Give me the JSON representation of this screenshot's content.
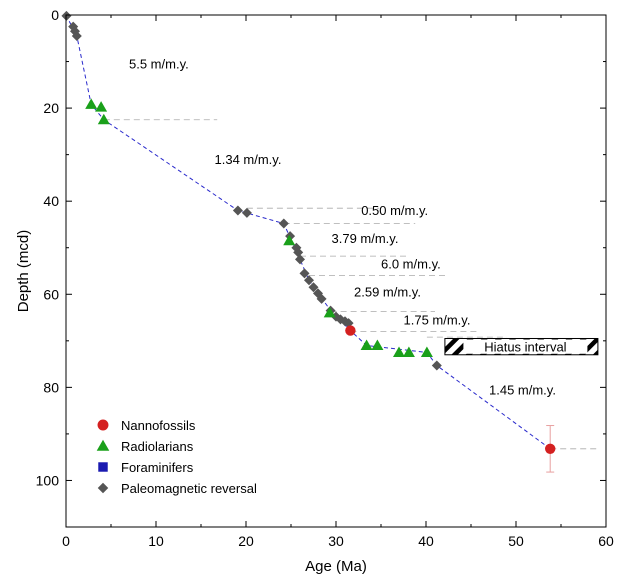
{
  "chart_data": {
    "type": "scatter",
    "xlabel": "Age (Ma)",
    "ylabel": "Depth (mcd)",
    "xlim": [
      0,
      60
    ],
    "ylim": [
      110,
      0
    ],
    "xticks": [
      0,
      10,
      20,
      30,
      40,
      50,
      60
    ],
    "yticks": [
      0,
      20,
      40,
      60,
      80,
      100
    ],
    "y_inverted": true,
    "grid": false,
    "legend_placement": "bottom-left",
    "series": [
      {
        "name": "Nannofossils",
        "marker": "circle",
        "color": "#d42020",
        "points": [
          {
            "x": 31.6,
            "y": 67.8
          },
          {
            "x": 53.8,
            "y": 93.2,
            "yerr": [
              88.2,
              98.2
            ]
          }
        ]
      },
      {
        "name": "Radiolarians",
        "marker": "triangle",
        "color": "#1aa01a",
        "points": [
          {
            "x": 2.8,
            "y": 19.2
          },
          {
            "x": 3.9,
            "y": 19.8
          },
          {
            "x": 4.2,
            "y": 22.5
          },
          {
            "x": 24.8,
            "y": 48.5
          },
          {
            "x": 29.3,
            "y": 64.0
          },
          {
            "x": 33.4,
            "y": 71.0
          },
          {
            "x": 34.6,
            "y": 71.0
          },
          {
            "x": 37.0,
            "y": 72.5
          },
          {
            "x": 38.1,
            "y": 72.5
          },
          {
            "x": 40.1,
            "y": 72.5
          }
        ]
      },
      {
        "name": "Foraminifers",
        "marker": "square",
        "color": "#1a1ab0",
        "points": []
      },
      {
        "name": "Paleomagnetic reversal",
        "marker": "diamond",
        "color": "#555555",
        "points": [
          {
            "x": 0.05,
            "y": 0.2
          },
          {
            "x": 0.8,
            "y": 2.5
          },
          {
            "x": 1.0,
            "y": 3.5
          },
          {
            "x": 1.2,
            "y": 4.5
          },
          {
            "x": 19.1,
            "y": 42.0
          },
          {
            "x": 20.1,
            "y": 42.5
          },
          {
            "x": 24.2,
            "y": 44.8
          },
          {
            "x": 24.9,
            "y": 47.5
          },
          {
            "x": 25.6,
            "y": 50.0
          },
          {
            "x": 25.8,
            "y": 51.0
          },
          {
            "x": 26.0,
            "y": 52.5
          },
          {
            "x": 26.5,
            "y": 55.5
          },
          {
            "x": 27.0,
            "y": 57.0
          },
          {
            "x": 27.5,
            "y": 58.5
          },
          {
            "x": 28.0,
            "y": 59.8
          },
          {
            "x": 28.4,
            "y": 61.0
          },
          {
            "x": 29.4,
            "y": 63.5
          },
          {
            "x": 30.0,
            "y": 64.8
          },
          {
            "x": 30.5,
            "y": 65.4
          },
          {
            "x": 31.0,
            "y": 65.8
          },
          {
            "x": 31.4,
            "y": 66.2
          },
          {
            "x": 41.2,
            "y": 75.3
          }
        ]
      }
    ],
    "age_model_line": {
      "points": [
        {
          "x": 0,
          "y": 0
        },
        {
          "x": 1.2,
          "y": 4.5
        },
        {
          "x": 2.8,
          "y": 19.2
        },
        {
          "x": 4.2,
          "y": 22.5
        },
        {
          "x": 19.1,
          "y": 42.0
        },
        {
          "x": 24.2,
          "y": 44.8
        },
        {
          "x": 26.0,
          "y": 52.5
        },
        {
          "x": 27.0,
          "y": 57.0
        },
        {
          "x": 29.4,
          "y": 63.5
        },
        {
          "x": 31.6,
          "y": 67.8
        },
        {
          "x": 33.4,
          "y": 71.0
        },
        {
          "x": 40.1,
          "y": 72.5
        },
        {
          "x": 41.2,
          "y": 75.3
        },
        {
          "x": 53.8,
          "y": 93.2
        }
      ]
    },
    "annotations": [
      {
        "text": "5.5 m/m.y.",
        "x": 7.0,
        "y": 11.5
      },
      {
        "text": "1.34 m/m.y.",
        "x": 16.5,
        "y": 32.0
      },
      {
        "text": "0.50 m/m.y.",
        "x": 32.8,
        "y": 43.0
      },
      {
        "text": "3.79 m/m.y.",
        "x": 29.5,
        "y": 49.0
      },
      {
        "text": "6.0 m/m.y.",
        "x": 35.0,
        "y": 54.5
      },
      {
        "text": "2.59 m/m.y.",
        "x": 32.0,
        "y": 60.5
      },
      {
        "text": "1.75 m/m.y.",
        "x": 37.5,
        "y": 66.5
      },
      {
        "text": "1.45 m/m.y.",
        "x": 47.0,
        "y": 81.5
      }
    ],
    "reference_lines": [
      {
        "x1": 4.2,
        "x2": 16.8,
        "y": 22.5
      },
      {
        "x1": 20.1,
        "x2": 34.8,
        "y": 41.5
      },
      {
        "x1": 24.2,
        "x2": 38.8,
        "y": 44.8
      },
      {
        "x1": 26.0,
        "x2": 38.0,
        "y": 51.8
      },
      {
        "x1": 27.0,
        "x2": 42.3,
        "y": 56.0
      },
      {
        "x1": 29.4,
        "x2": 41.0,
        "y": 63.7
      },
      {
        "x1": 31.6,
        "x2": 46.0,
        "y": 68.0
      },
      {
        "x1": 40.1,
        "x2": 49.0,
        "y": 69.2
      },
      {
        "x1": 53.8,
        "x2": 59.0,
        "y": 93.2
      }
    ],
    "hiatus": {
      "label": "Hiatus interval",
      "x1": 42.1,
      "x2": 59.1,
      "y_top": 69.5,
      "y_bottom": 73.0
    }
  }
}
